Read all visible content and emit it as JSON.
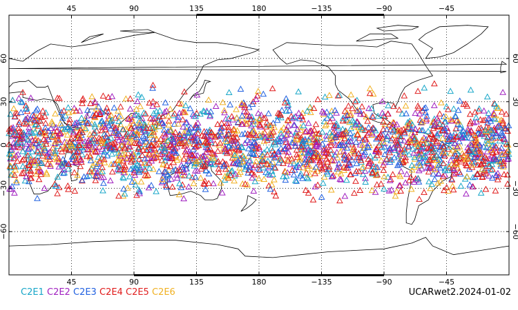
{
  "map": {
    "projection": "cylindrical-equidistant",
    "lon_range": [
      0,
      360
    ],
    "lat_range": [
      -90,
      90
    ],
    "grid": "dotted",
    "top_lon_ticks": [
      "45",
      "90",
      "135",
      "180",
      "−135",
      "−90",
      "−45"
    ],
    "bottom_lon_ticks": [
      "45",
      "90",
      "135",
      "180",
      "−135",
      "−90",
      "−45"
    ],
    "left_lat_ticks": [
      "60",
      "30",
      "0",
      "−30",
      "−60"
    ],
    "right_lat_ticks": [
      "60",
      "30",
      "0",
      "−30",
      "−60"
    ],
    "marker_shape": "open-triangle",
    "observations_lat_extent": [
      -45,
      45
    ]
  },
  "legend": {
    "items": [
      {
        "label": "C2E1",
        "color": "#17a6c8"
      },
      {
        "label": "C2E2",
        "color": "#a020c0"
      },
      {
        "label": "C2E3",
        "color": "#2060e0"
      },
      {
        "label": "C2E4",
        "color": "#e01818"
      },
      {
        "label": "C2E5",
        "color": "#e02020"
      },
      {
        "label": "C2E6",
        "color": "#f0b020"
      }
    ]
  },
  "dataset_label": "UCARwet2.2024-01-02"
}
